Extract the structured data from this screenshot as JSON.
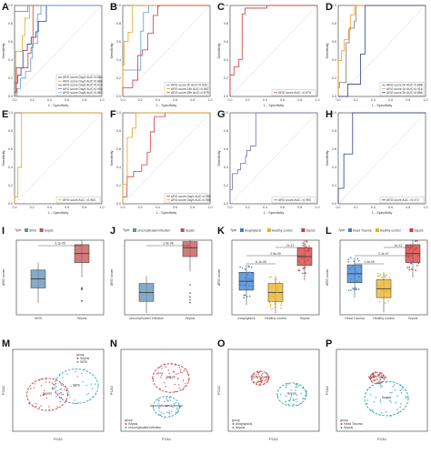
{
  "figure": {
    "rows": [
      {
        "type": "roc",
        "panels": [
          {
            "letter": "A",
            "xlabel": "1 - Specificity",
            "ylabel": "Sensitivity",
            "legend": [
              "ARG score Day1 AUC=0.884",
              "ARG score Day2 AUC=0.888",
              "ARG score Day3 AUC=0.916",
              "ARG score Day4 AUC=0.908",
              "ARG score Day5 AUC=0.883"
            ],
            "colors": [
              "#2c3e9a",
              "#e8a020",
              "#d23a3a",
              "#7a7a7a",
              "#5b9bd5"
            ]
          },
          {
            "letter": "B",
            "xlabel": "1 - Specificity",
            "ylabel": "Sensitivity",
            "legend": [
              "ARG score 0h AUC=0.926",
              "ARG score 24h AUC=0.867",
              "ARG score 48h AUC=0.879"
            ],
            "colors": [
              "#5b9bd5",
              "#e8a020",
              "#d23a3a"
            ]
          },
          {
            "letter": "C",
            "xlabel": "1 - Specificity",
            "ylabel": "Sensitivity",
            "legend": [
              "ARG score AUC =0.975"
            ],
            "colors": [
              "#d23a3a"
            ]
          },
          {
            "letter": "D",
            "xlabel": "1 - Specificity",
            "ylabel": "Sensitivity",
            "legend": [
              "ARG score 0h AUC=0.888",
              "ARG score 1h AUC=0.916",
              "ARG score 3h AUC=0.886"
            ],
            "colors": [
              "#7a7a7a",
              "#e8a020",
              "#2c3e9a"
            ]
          }
        ]
      },
      {
        "type": "roc",
        "panels": [
          {
            "letter": "E",
            "xlabel": "1 - Specificity",
            "ylabel": "Sensitivity",
            "legend": [
              "ARG score AUC =0.963"
            ],
            "colors": [
              "#e8a020"
            ]
          },
          {
            "letter": "F",
            "xlabel": "1 - Specificity",
            "ylabel": "Sensitivity",
            "legend": [
              "ARG score Day1 AUC=0.998",
              "ARG score Day3 AUC=0.958"
            ],
            "colors": [
              "#d23a3a",
              "#e8a020"
            ]
          },
          {
            "letter": "G",
            "xlabel": "1 - Specificity",
            "ylabel": "Sensitivity",
            "legend": [
              "ARG score AUC =0.990"
            ],
            "colors": [
              "#7b6bb5"
            ]
          },
          {
            "letter": "H",
            "xlabel": "1 - Specificity",
            "ylabel": "Sensitivity",
            "legend": [
              "ARG score AUC =0.972"
            ],
            "colors": [
              "#2c3e9a"
            ]
          }
        ]
      },
      {
        "type": "box",
        "panels": [
          {
            "letter": "I",
            "ylabel": "ARG score",
            "type_label": "Type",
            "groups": [
              "SIRS",
              "Sepsis"
            ],
            "colors": [
              "#5b8fb5",
              "#c0504d"
            ],
            "pvalue": "3.2e-05"
          },
          {
            "letter": "J",
            "ylabel": "ARG score",
            "type_label": "Type",
            "groups": [
              "Uncomplicated Infection",
              "Sepsis"
            ],
            "colors": [
              "#5b8fb5",
              "#c0504d"
            ],
            "pvalue": "1.5e-08"
          },
          {
            "letter": "K",
            "ylabel": "ARG score",
            "type_label": "Type",
            "groups": [
              "Anaphylaxis",
              "Healthy control",
              "Sepsis"
            ],
            "colors": [
              "#3a7fcf",
              "#e8b020",
              "#d23a3a"
            ],
            "pvalues": [
              "6.1e-05",
              "2.9e-09",
              "7e-12"
            ]
          },
          {
            "letter": "L",
            "ylabel": "ARG score",
            "type_label": "Type",
            "groups": [
              "Head Trauma",
              "Healthy control",
              "Sepsis"
            ],
            "colors": [
              "#3a7fcf",
              "#e8b020",
              "#d23a3a"
            ],
            "pvalues": [
              "1.3e-05",
              "2.1e-07",
              "1e-12"
            ]
          }
        ]
      },
      {
        "type": "pca",
        "panels": [
          {
            "letter": "M",
            "xlabel": "PCA1",
            "ylabel": "PCA2",
            "legend_title": "group",
            "groups": [
              "Sepsis",
              "SIRS"
            ],
            "colors": [
              "#d23a3a",
              "#3aa0c8"
            ]
          },
          {
            "letter": "N",
            "xlabel": "PCA1",
            "ylabel": "PCA2",
            "legend_title": "group",
            "groups": [
              "Sepsis",
              "Uncomplicated Infection"
            ],
            "colors": [
              "#d23a3a",
              "#3aa0c8"
            ]
          },
          {
            "letter": "O",
            "xlabel": "PCA1",
            "ylabel": "PCA2",
            "legend_title": "group",
            "groups": [
              "Anaphylaxis",
              "Sepsis"
            ],
            "colors": [
              "#d23a3a",
              "#1aa7a0"
            ]
          },
          {
            "letter": "P",
            "xlabel": "PCA1",
            "ylabel": "PCA2",
            "legend_title": "group",
            "groups": [
              "Head Trauma",
              "Sepsis"
            ],
            "colors": [
              "#d23a3a",
              "#1aa7a0"
            ]
          }
        ]
      }
    ]
  }
}
